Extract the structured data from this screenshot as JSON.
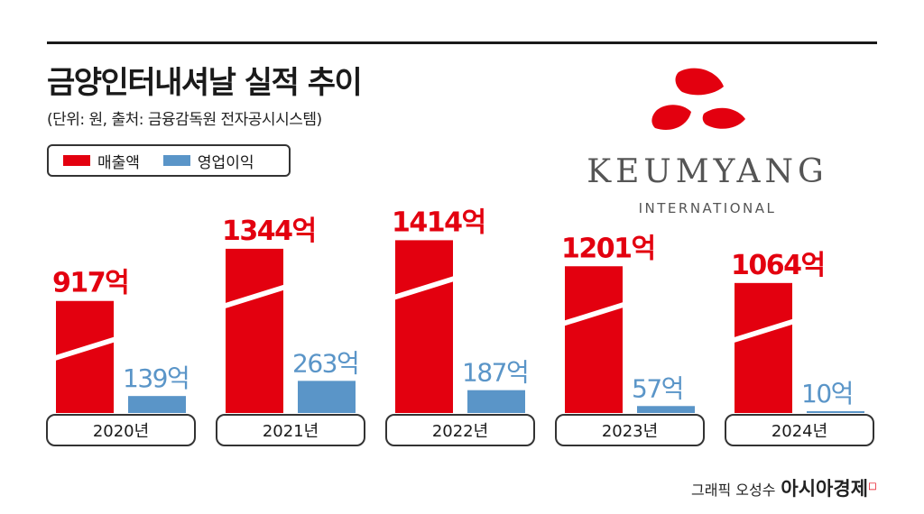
{
  "header": {
    "title": "금양인터내셔날 실적 추이",
    "subtitle": "(단위: 원, 출처: 금융감독원 전자공시시스템)"
  },
  "legend": {
    "revenue_label": "매출액",
    "profit_label": "영업이익"
  },
  "logo": {
    "name": "KEUMYANG",
    "sub": "INTERNATIONAL"
  },
  "credit": {
    "author": "그래픽 오성수",
    "brand": "아시아경제"
  },
  "colors": {
    "revenue": "#e3000f",
    "profit": "#5a95c8",
    "text": "#1a1a1a"
  },
  "chart_data": {
    "type": "bar",
    "categories": [
      "2020년",
      "2021년",
      "2022년",
      "2023년",
      "2024년"
    ],
    "unit_suffix": "억",
    "series": [
      {
        "name": "매출액",
        "values": [
          917,
          1344,
          1414,
          1201,
          1064
        ]
      },
      {
        "name": "영업이익",
        "values": [
          139,
          263,
          187,
          57,
          10
        ]
      }
    ]
  }
}
